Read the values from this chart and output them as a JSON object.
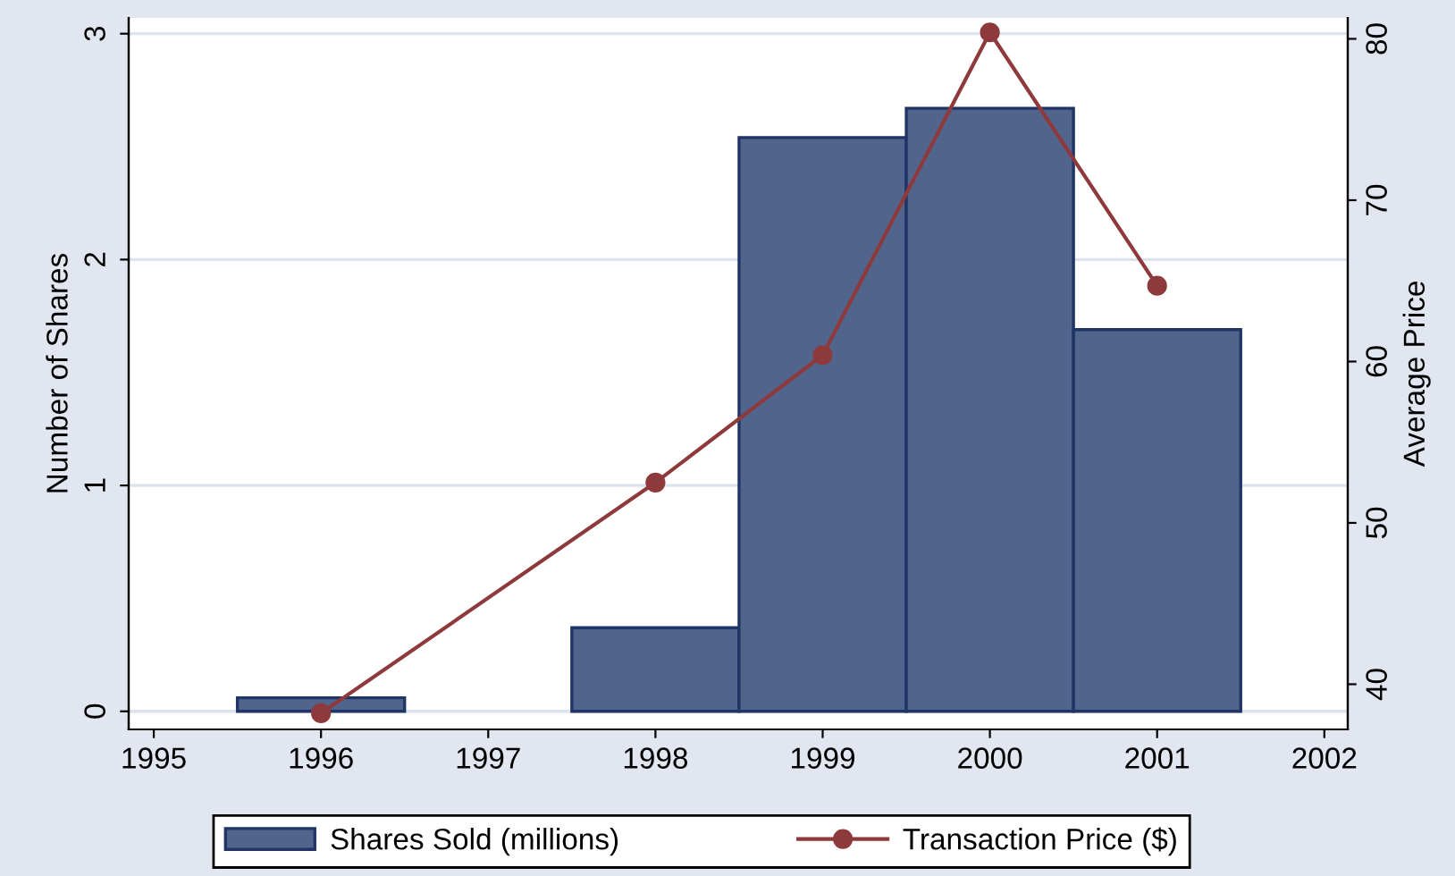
{
  "chart_data": {
    "type": "bar",
    "x": [
      1996,
      1998,
      1999,
      2000,
      2001
    ],
    "xlim": [
      1994.85,
      2002.14
    ],
    "xticks": [
      1995,
      1996,
      1997,
      1998,
      1999,
      2000,
      2001,
      2002
    ],
    "ylim": [
      -0.08,
      3.07
    ],
    "yticks": [
      0,
      1,
      2,
      3
    ],
    "y2lim": [
      37.2,
      81.3
    ],
    "y2ticks": [
      40,
      50,
      60,
      70,
      80
    ],
    "ylabel": "Number of Shares",
    "y2label": "Average Price",
    "grid": "y",
    "legend": "bottom",
    "marker": "circle",
    "line_style": "solid",
    "series": [
      {
        "name": "Shares Sold (millions)",
        "color": "#51658c",
        "values": [
          0.06,
          0.37,
          2.54,
          2.67,
          1.69
        ]
      },
      {
        "name": "Transaction Price ($)",
        "type": "line",
        "axis": "y2",
        "color": "#8e3a3d",
        "values": [
          38.2,
          52.5,
          60.4,
          80.4,
          64.7
        ]
      }
    ]
  }
}
